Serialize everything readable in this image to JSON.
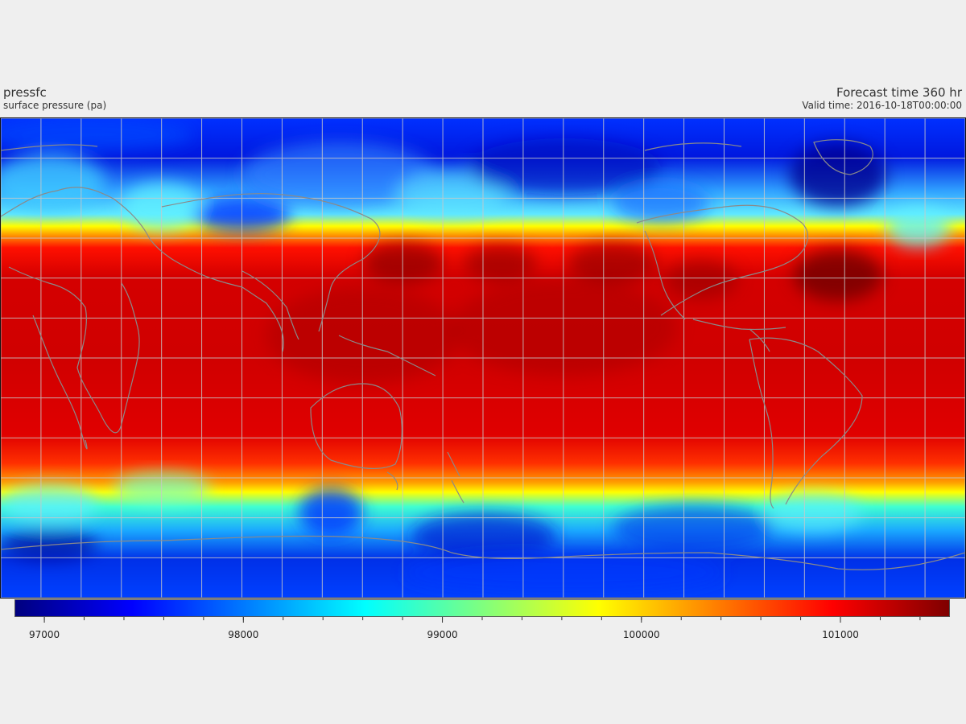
{
  "header": {
    "variable": "pressfc",
    "long_name": "surface pressure (pa)",
    "forecast_time": "Forecast time 360 hr",
    "valid_time": "Valid time: 2016-10-18T00:00:00"
  },
  "colorbar": {
    "min": 96850,
    "max": 101550,
    "tick_values": [
      97000,
      98000,
      99000,
      100000,
      101000
    ],
    "tick_labels": [
      "97000",
      "98000",
      "99000",
      "100000",
      "101000"
    ],
    "colors": [
      "#00007f",
      "#0000ff",
      "#007fff",
      "#00ffff",
      "#7fff7f",
      "#ffff00",
      "#ff7f00",
      "#ff0000",
      "#7f0000"
    ]
  },
  "map": {
    "projection": "equirectangular",
    "graticule_lon_step": 15,
    "graticule_lat_step": 15,
    "pressure_bands": {
      "polar_low": 98000,
      "subtropical_transition": 99500,
      "tropical_high": 100800
    }
  }
}
